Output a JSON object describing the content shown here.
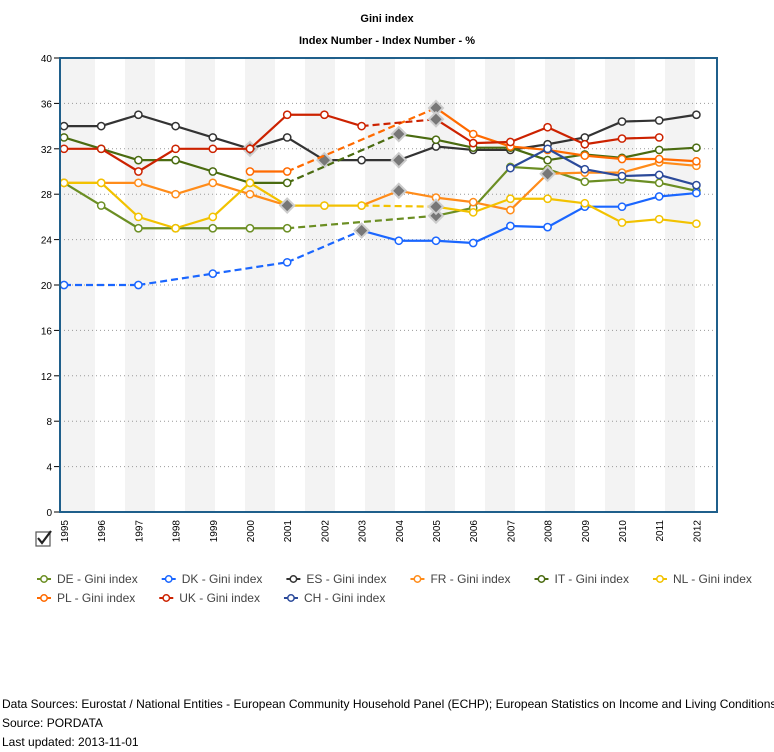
{
  "chart_data": {
    "type": "line",
    "title": "Gini index",
    "subtitle": "Index Number - Index Number - %",
    "xlabel": "",
    "ylabel": "",
    "ylim": [
      0,
      40
    ],
    "yticks": [
      0,
      4,
      8,
      12,
      16,
      20,
      24,
      28,
      32,
      36,
      40
    ],
    "grid": "horizontal dotted",
    "legend_position": "bottom",
    "x": [
      "1995",
      "1996",
      "1997",
      "1998",
      "1999",
      "2000",
      "2001",
      "2002",
      "2003",
      "2004",
      "2005",
      "2006",
      "2007",
      "2008",
      "2009",
      "2010",
      "2011",
      "2012"
    ],
    "series": [
      {
        "name": "DE - Gini index",
        "color": "#6b8e23",
        "values": [
          29,
          27,
          25,
          25,
          25,
          25,
          25,
          null,
          null,
          null,
          26.1,
          26.8,
          30.4,
          30.2,
          29.1,
          29.3,
          29.0,
          28.3
        ],
        "breaks": [
          "2005"
        ]
      },
      {
        "name": "DK - Gini index",
        "color": "#1a66ff",
        "values": [
          20,
          null,
          20,
          null,
          21,
          null,
          22,
          null,
          24.8,
          23.9,
          23.9,
          23.7,
          25.2,
          25.1,
          26.9,
          26.9,
          27.8,
          28.1
        ],
        "breaks": [
          "2003"
        ]
      },
      {
        "name": "ES - Gini index",
        "color": "#333333",
        "values": [
          34,
          34,
          35,
          34,
          33,
          32,
          33,
          31,
          31,
          31,
          32.2,
          31.9,
          31.9,
          32.4,
          33.0,
          34.4,
          34.5,
          35.0
        ],
        "breaks": [
          "2000",
          "2002",
          "2004"
        ]
      },
      {
        "name": "FR - Gini index",
        "color": "#ff8c1a",
        "values": [
          29,
          29,
          29,
          28,
          29,
          28,
          27,
          27,
          27,
          28.3,
          27.7,
          27.3,
          26.6,
          29.8,
          29.9,
          29.9,
          30.8,
          30.5
        ],
        "breaks": [
          "2004",
          "2008"
        ]
      },
      {
        "name": "IT - Gini index",
        "color": "#4a6b10",
        "values": [
          33,
          32,
          31,
          31,
          30,
          29,
          29,
          null,
          null,
          33.3,
          32.8,
          32.1,
          32.1,
          31.0,
          31.5,
          31.2,
          31.9,
          32.1
        ],
        "breaks": [
          "2004"
        ]
      },
      {
        "name": "NL - Gini index",
        "color": "#f2c200",
        "values": [
          29,
          29,
          26,
          25,
          26,
          29,
          27,
          27,
          27,
          null,
          26.9,
          26.4,
          27.6,
          27.6,
          27.2,
          25.5,
          25.8,
          25.4
        ],
        "breaks": [
          "2001",
          "2005"
        ]
      },
      {
        "name": "PL - Gini index",
        "color": "#ff6a00",
        "values": [
          null,
          null,
          null,
          null,
          null,
          30,
          30,
          null,
          null,
          null,
          35.6,
          33.3,
          32.2,
          31.9,
          31.4,
          31.1,
          31.1,
          30.9
        ],
        "breaks": [
          "2005"
        ]
      },
      {
        "name": "UK - Gini index",
        "color": "#cc2200",
        "values": [
          32,
          32,
          30,
          32,
          32,
          32,
          35,
          35,
          34,
          null,
          34.6,
          32.5,
          32.6,
          33.9,
          32.4,
          32.9,
          33.0,
          null
        ],
        "breaks": [
          "2005"
        ]
      },
      {
        "name": "CH - Gini index",
        "color": "#2b4a9a",
        "values": [
          null,
          null,
          null,
          null,
          null,
          null,
          null,
          null,
          null,
          null,
          null,
          null,
          30.3,
          32.0,
          30.2,
          29.6,
          29.7,
          28.8
        ],
        "breaks": []
      }
    ]
  },
  "colors": {
    "frame": "#1f5f8b",
    "band": "#f3f3f3",
    "break_marker": "#777777"
  },
  "icons": {
    "toggle": "checkbox-checked-icon"
  },
  "footer": {
    "sources": "Data Sources: Eurostat / National Entities - European Community Household Panel (ECHP); European Statistics on Income and Living Conditions (EU-SILC).",
    "source": "Source: PORDATA",
    "updated": "Last updated: 2013-11-01"
  }
}
